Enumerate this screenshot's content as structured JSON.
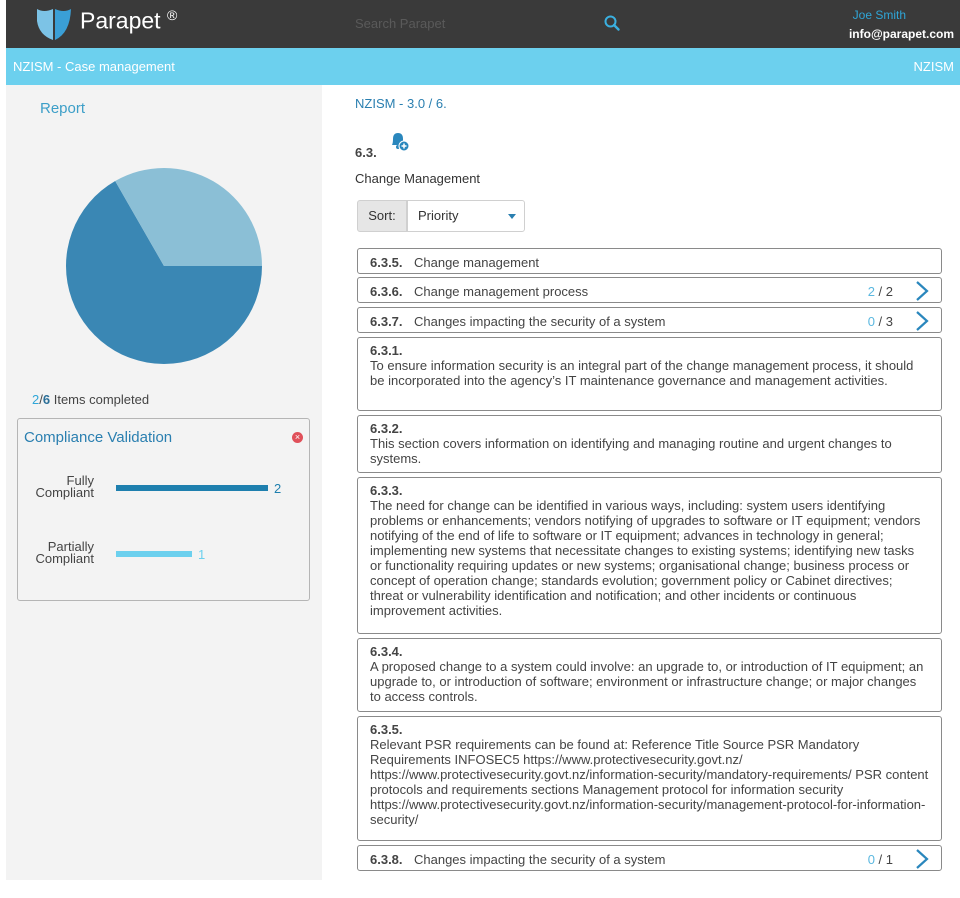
{
  "header": {
    "brand": "Parapet",
    "brand_mark": "®",
    "search_placeholder": "Search Parapet",
    "user_name": "Joe Smith",
    "user_email": "info@parapet.com"
  },
  "subheader": {
    "left": "NZISM - Case management",
    "right": "NZISM"
  },
  "left": {
    "report_title": "Report",
    "pie": {
      "completed_fraction": 0.333,
      "colors": {
        "completed": "#8bbfd6",
        "remaining": "#3a87b4"
      }
    },
    "items_completed": {
      "done": "2",
      "total": "6",
      "label": "Items completed"
    },
    "compliance": {
      "title": "Compliance Validation",
      "rows": [
        {
          "label_1": "Fully",
          "label_2": "Compliant",
          "value": "2",
          "fraction": 1.0,
          "color": "#1e7fae"
        },
        {
          "label_1": "Partially",
          "label_2": "Compliant",
          "value": "1",
          "fraction": 0.5,
          "color": "#6cd0ee"
        }
      ]
    }
  },
  "main": {
    "breadcrumb": "NZISM - 3.0 / 6.",
    "section_num": "6.3.",
    "section_title": "Change Management",
    "sort": {
      "label": "Sort:",
      "value": "Priority"
    },
    "rows": [
      {
        "num": "6.3.5.",
        "text": "Change management",
        "done": "",
        "sep": "",
        "total": ""
      },
      {
        "num": "6.3.6.",
        "text": "Change management process",
        "done": "2",
        "sep": " / ",
        "total": "2"
      },
      {
        "num": "6.3.7.",
        "text": "Changes impacting the security of a system",
        "done": "0",
        "sep": " / ",
        "total": "3"
      }
    ],
    "paragraphs": [
      {
        "num": "6.3.1.",
        "text": "To ensure information security is an integral part of the change management process, it should be incorporated into the agency’s IT maintenance governance and management activities."
      },
      {
        "num": "6.3.2.",
        "text": "This section covers information on identifying and managing routine and urgent changes to systems."
      },
      {
        "num": "6.3.3.",
        "text": "The need for change can be identified in various ways, including: system users identifying problems or enhancements; vendors notifying of upgrades to software or IT equipment; vendors notifying of the end of life to software or IT equipment; advances in technology in general; implementing new systems that necessitate changes to existing systems; identifying new tasks or functionality requiring updates or new systems; organisational change; business process or concept of operation change; standards evolution; government policy or Cabinet directives; threat or vulnerability identification and notification; and other incidents or continuous improvement activities."
      },
      {
        "num": "6.3.4.",
        "text": "A proposed change to a system could involve: an upgrade to, or introduction of IT equipment; an upgrade to, or introduction of software; environment or infrastructure change; or major changes to access controls."
      },
      {
        "num": "6.3.5.",
        "text": "Relevant PSR requirements can be found at: Reference Title Source PSR Mandatory Requirements INFOSEC5 https://www.protectivesecurity.govt.nz/ https://www.protectivesecurity.govt.nz/information-security/mandatory-requirements/ PSR content protocols and requirements sections Management protocol for information security https://www.protectivesecurity.govt.nz/information-security/management-protocol-for-information-security/"
      }
    ],
    "last_row": {
      "num": "6.3.8.",
      "text": "Changes impacting the security of a system",
      "done": "0",
      "sep": " / ",
      "total": "1"
    }
  }
}
